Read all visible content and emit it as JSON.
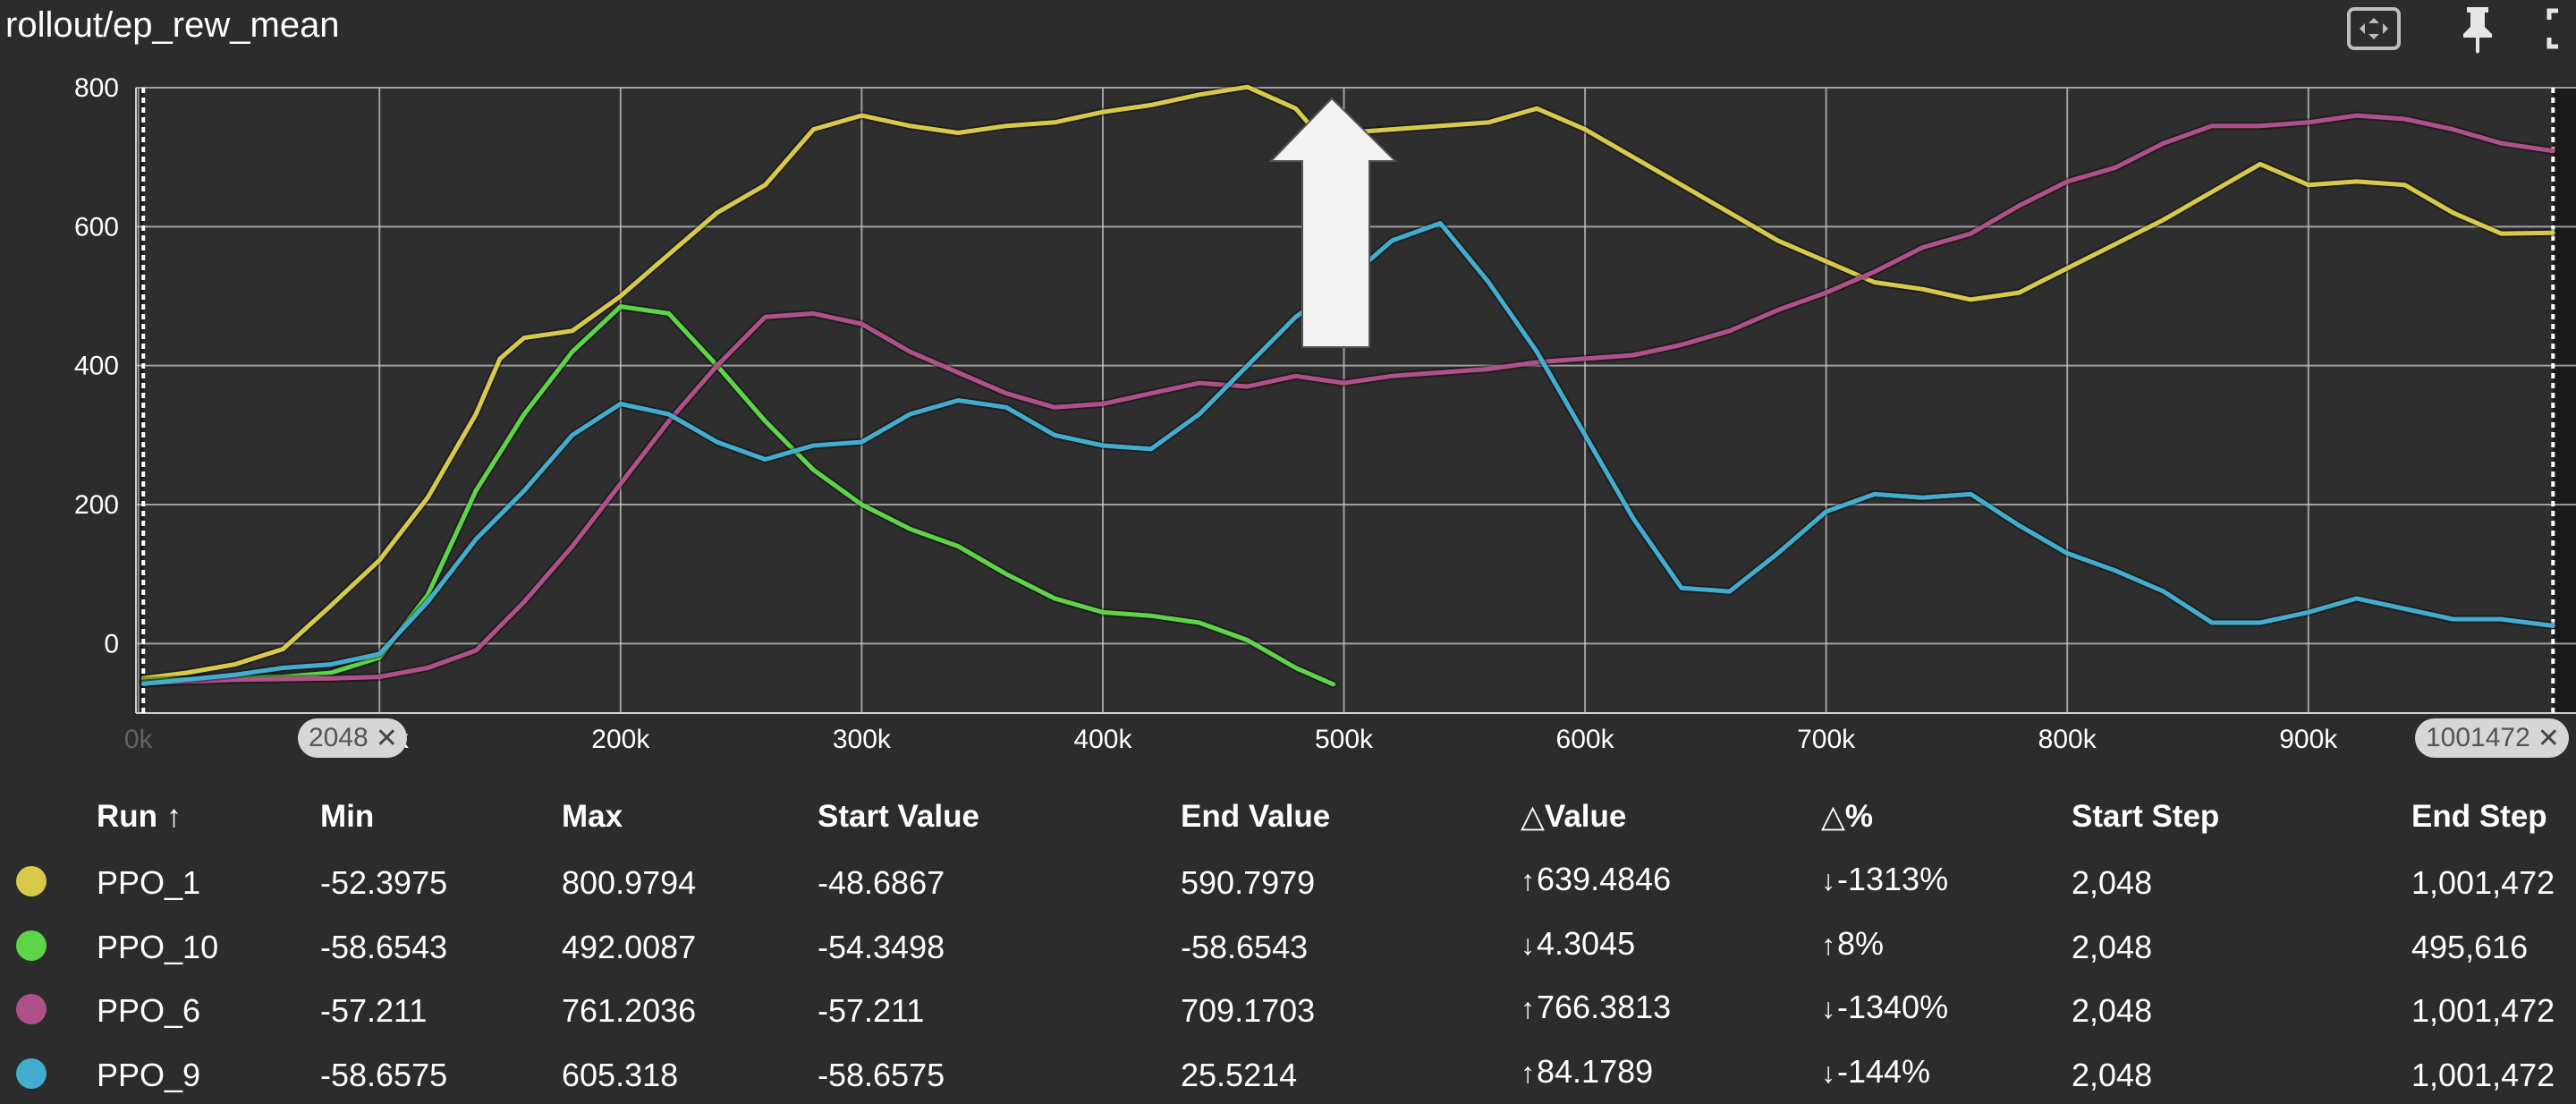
{
  "header": {
    "title": "rollout/ep_rew_mean",
    "icons": [
      "fit-domain-icon",
      "pin-icon",
      "fullscreen-icon"
    ]
  },
  "range": {
    "start_label": "2048",
    "end_label": "1001472"
  },
  "table": {
    "headers": [
      "Run ↑",
      "Min",
      "Max",
      "Start Value",
      "End Value",
      "△Value",
      "△%",
      "Start Step",
      "End Step"
    ],
    "rows": [
      {
        "color": "#d8c94a",
        "run": "PPO_1",
        "min": "-52.3975",
        "max": "800.9794",
        "start": "-48.6867",
        "end": "590.7979",
        "dvalue": "639.4846",
        "dvalue_dir": "↑",
        "dpct": "-1313%",
        "dpct_dir": "↓",
        "start_step": "2,048",
        "end_step": "1,001,472"
      },
      {
        "color": "#5ed448",
        "run": "PPO_10",
        "min": "-58.6543",
        "max": "492.0087",
        "start": "-54.3498",
        "end": "-58.6543",
        "dvalue": "4.3045",
        "dvalue_dir": "↓",
        "dpct": "8%",
        "dpct_dir": "↑",
        "start_step": "2,048",
        "end_step": "495,616"
      },
      {
        "color": "#b0508a",
        "run": "PPO_6",
        "min": "-57.211",
        "max": "761.2036",
        "start": "-57.211",
        "end": "709.1703",
        "dvalue": "766.3813",
        "dvalue_dir": "↑",
        "dpct": "-1340%",
        "dpct_dir": "↓",
        "start_step": "2,048",
        "end_step": "1,001,472"
      },
      {
        "color": "#43adcf",
        "run": "PPO_9",
        "min": "-58.6575",
        "max": "605.318",
        "start": "-58.6575",
        "end": "25.5214",
        "dvalue": "84.1789",
        "dvalue_dir": "↑",
        "dpct": "-144%",
        "dpct_dir": "↓",
        "start_step": "2,048",
        "end_step": "1,001,472"
      }
    ]
  },
  "chart_data": {
    "type": "line",
    "title": "rollout/ep_rew_mean",
    "xlim": [
      -1000,
      1011000
    ],
    "ylim": [
      -100,
      800
    ],
    "x_ticks": [
      0,
      100000,
      200000,
      300000,
      400000,
      500000,
      600000,
      700000,
      800000,
      900000
    ],
    "x_tick_labels": [
      "0k",
      "100k",
      "200k",
      "300k",
      "400k",
      "500k",
      "600k",
      "700k",
      "800k",
      "900k"
    ],
    "y_ticks": [
      0,
      200,
      400,
      600,
      800
    ],
    "y_tick_labels": [
      "0",
      "200",
      "400",
      "600",
      "800"
    ],
    "grid": true,
    "annotation": "up-arrow",
    "series": [
      {
        "name": "PPO_1",
        "color": "#d8c94a",
        "points": [
          [
            2048,
            -50
          ],
          [
            20000,
            -42
          ],
          [
            40000,
            -30
          ],
          [
            60000,
            -8
          ],
          [
            80000,
            55
          ],
          [
            100000,
            120
          ],
          [
            120000,
            210
          ],
          [
            140000,
            330
          ],
          [
            150000,
            410
          ],
          [
            160000,
            440
          ],
          [
            180000,
            450
          ],
          [
            200000,
            500
          ],
          [
            220000,
            560
          ],
          [
            240000,
            620
          ],
          [
            260000,
            660
          ],
          [
            280000,
            740
          ],
          [
            300000,
            760
          ],
          [
            320000,
            745
          ],
          [
            340000,
            735
          ],
          [
            360000,
            745
          ],
          [
            380000,
            750
          ],
          [
            400000,
            765
          ],
          [
            420000,
            775
          ],
          [
            440000,
            790
          ],
          [
            460000,
            801
          ],
          [
            480000,
            770
          ],
          [
            490000,
            730
          ],
          [
            500000,
            735
          ],
          [
            520000,
            740
          ],
          [
            560000,
            750
          ],
          [
            580000,
            770
          ],
          [
            600000,
            740
          ],
          [
            620000,
            700
          ],
          [
            640000,
            660
          ],
          [
            660000,
            620
          ],
          [
            680000,
            580
          ],
          [
            700000,
            550
          ],
          [
            720000,
            520
          ],
          [
            740000,
            510
          ],
          [
            760000,
            495
          ],
          [
            780000,
            505
          ],
          [
            800000,
            540
          ],
          [
            820000,
            575
          ],
          [
            840000,
            610
          ],
          [
            860000,
            650
          ],
          [
            880000,
            690
          ],
          [
            900000,
            660
          ],
          [
            920000,
            665
          ],
          [
            940000,
            660
          ],
          [
            960000,
            620
          ],
          [
            980000,
            590
          ],
          [
            1001472,
            591
          ]
        ]
      },
      {
        "name": "PPO_10",
        "color": "#5ed448",
        "points": [
          [
            2048,
            -54
          ],
          [
            30000,
            -50
          ],
          [
            60000,
            -48
          ],
          [
            80000,
            -42
          ],
          [
            100000,
            -20
          ],
          [
            120000,
            70
          ],
          [
            140000,
            220
          ],
          [
            160000,
            330
          ],
          [
            180000,
            420
          ],
          [
            200000,
            485
          ],
          [
            220000,
            475
          ],
          [
            240000,
            400
          ],
          [
            260000,
            320
          ],
          [
            280000,
            250
          ],
          [
            300000,
            200
          ],
          [
            320000,
            165
          ],
          [
            340000,
            140
          ],
          [
            360000,
            100
          ],
          [
            380000,
            65
          ],
          [
            400000,
            45
          ],
          [
            420000,
            40
          ],
          [
            440000,
            30
          ],
          [
            460000,
            5
          ],
          [
            480000,
            -35
          ],
          [
            495616,
            -58.65
          ]
        ]
      },
      {
        "name": "PPO_6",
        "color": "#b0508a",
        "points": [
          [
            2048,
            -57
          ],
          [
            40000,
            -52
          ],
          [
            80000,
            -50
          ],
          [
            100000,
            -48
          ],
          [
            120000,
            -35
          ],
          [
            140000,
            -10
          ],
          [
            160000,
            60
          ],
          [
            180000,
            140
          ],
          [
            200000,
            230
          ],
          [
            220000,
            320
          ],
          [
            240000,
            400
          ],
          [
            260000,
            470
          ],
          [
            280000,
            475
          ],
          [
            300000,
            460
          ],
          [
            320000,
            420
          ],
          [
            340000,
            390
          ],
          [
            360000,
            360
          ],
          [
            380000,
            340
          ],
          [
            400000,
            345
          ],
          [
            420000,
            360
          ],
          [
            440000,
            375
          ],
          [
            460000,
            370
          ],
          [
            480000,
            385
          ],
          [
            500000,
            375
          ],
          [
            520000,
            385
          ],
          [
            560000,
            395
          ],
          [
            580000,
            405
          ],
          [
            600000,
            410
          ],
          [
            620000,
            415
          ],
          [
            640000,
            430
          ],
          [
            660000,
            450
          ],
          [
            680000,
            480
          ],
          [
            700000,
            505
          ],
          [
            720000,
            535
          ],
          [
            740000,
            570
          ],
          [
            760000,
            590
          ],
          [
            780000,
            630
          ],
          [
            800000,
            665
          ],
          [
            820000,
            685
          ],
          [
            840000,
            720
          ],
          [
            860000,
            745
          ],
          [
            880000,
            745
          ],
          [
            900000,
            750
          ],
          [
            920000,
            760
          ],
          [
            940000,
            755
          ],
          [
            960000,
            740
          ],
          [
            980000,
            720
          ],
          [
            1001472,
            709
          ]
        ]
      },
      {
        "name": "PPO_9",
        "color": "#43adcf",
        "points": [
          [
            2048,
            -58
          ],
          [
            40000,
            -45
          ],
          [
            60000,
            -35
          ],
          [
            80000,
            -30
          ],
          [
            100000,
            -15
          ],
          [
            120000,
            60
          ],
          [
            140000,
            150
          ],
          [
            160000,
            220
          ],
          [
            180000,
            300
          ],
          [
            200000,
            345
          ],
          [
            220000,
            330
          ],
          [
            240000,
            290
          ],
          [
            260000,
            265
          ],
          [
            280000,
            285
          ],
          [
            300000,
            290
          ],
          [
            320000,
            330
          ],
          [
            340000,
            350
          ],
          [
            360000,
            340
          ],
          [
            380000,
            300
          ],
          [
            400000,
            285
          ],
          [
            420000,
            280
          ],
          [
            440000,
            330
          ],
          [
            460000,
            400
          ],
          [
            480000,
            470
          ],
          [
            500000,
            520
          ],
          [
            520000,
            580
          ],
          [
            540000,
            605
          ],
          [
            560000,
            520
          ],
          [
            580000,
            420
          ],
          [
            600000,
            300
          ],
          [
            620000,
            180
          ],
          [
            640000,
            80
          ],
          [
            660000,
            75
          ],
          [
            680000,
            130
          ],
          [
            700000,
            190
          ],
          [
            720000,
            215
          ],
          [
            740000,
            210
          ],
          [
            760000,
            215
          ],
          [
            780000,
            170
          ],
          [
            800000,
            130
          ],
          [
            820000,
            105
          ],
          [
            840000,
            75
          ],
          [
            860000,
            30
          ],
          [
            880000,
            30
          ],
          [
            900000,
            45
          ],
          [
            920000,
            65
          ],
          [
            940000,
            50
          ],
          [
            960000,
            35
          ],
          [
            980000,
            35
          ],
          [
            1001472,
            25.5
          ]
        ]
      }
    ]
  }
}
